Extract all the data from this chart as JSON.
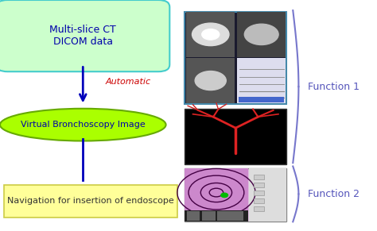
{
  "bg_color": "#ffffff",
  "box1_text": "Multi-slice CT\nDICOM data",
  "box1_facecolor": "#ccffcc",
  "box1_edgecolor": "#44cccc",
  "ellipse_text": "Virtual Bronchoscopy Image",
  "ellipse_facecolor": "#aaff00",
  "ellipse_edgecolor": "#66aa00",
  "box2_text": "Navigation for insertion of endoscope",
  "box2_facecolor": "#ffff99",
  "box2_edgecolor": "#cccc44",
  "arrow_color": "#0000bb",
  "auto_label": "Automatic",
  "auto_color": "#cc0000",
  "func1_text": "Function 1",
  "func2_text": "Function 2",
  "func_color": "#5555bb",
  "text_color": "#0000aa",
  "box2_text_color": "#333333",
  "title_fontsize": 9,
  "label_fontsize": 8,
  "func_fontsize": 9
}
